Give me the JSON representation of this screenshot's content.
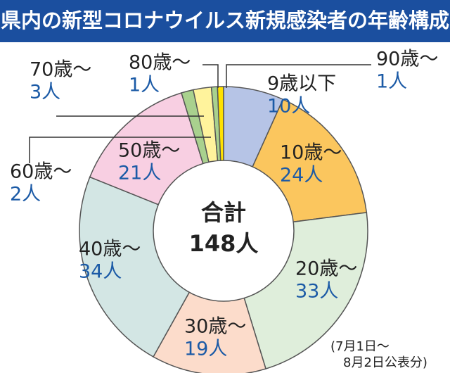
{
  "chart_data": {
    "type": "pie",
    "title": "県内の新型コロナウイルス新規感染者の年齢構成",
    "categories": [
      "9歳以下",
      "10歳〜",
      "20歳〜",
      "30歳〜",
      "40歳〜",
      "50歳〜",
      "60歳〜",
      "70歳〜",
      "80歳〜",
      "90歳〜"
    ],
    "values": [
      10,
      24,
      33,
      19,
      34,
      21,
      2,
      3,
      1,
      1
    ],
    "value_labels": [
      "10人",
      "24人",
      "33人",
      "19人",
      "34人",
      "21人",
      "2人",
      "3人",
      "1人",
      "1人"
    ],
    "colors": [
      "#b6c4e6",
      "#fbc65e",
      "#dfeedb",
      "#fcdccb",
      "#d3e6e4",
      "#f8cfe2",
      "#a9d18e",
      "#fff39c",
      "#a9d18e",
      "#ffe100"
    ],
    "center_title": "合計",
    "center_text": "148人",
    "note": [
      "(7月1日〜",
      "8月2日公表分)"
    ]
  }
}
